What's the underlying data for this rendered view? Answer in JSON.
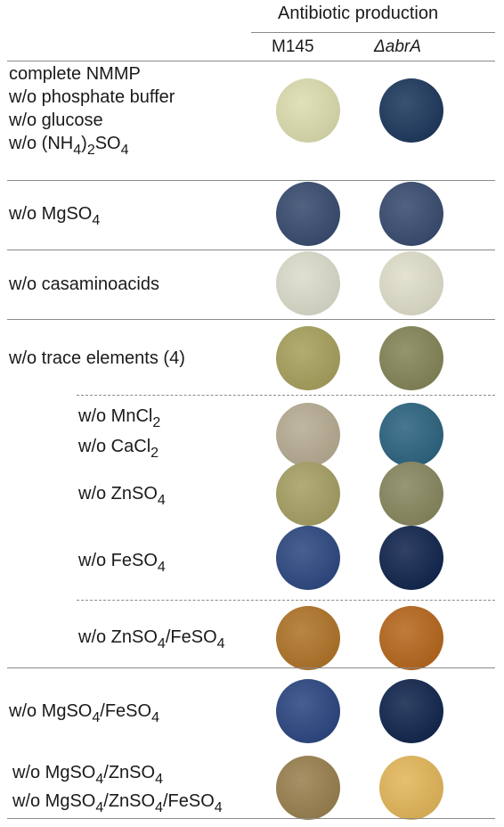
{
  "header": {
    "title": "Antibiotic production",
    "columns": [
      {
        "name": "M145",
        "style": "normal"
      },
      {
        "name": "ΔabrA",
        "style": "italic"
      }
    ]
  },
  "rows": [
    {
      "id": "row-complete",
      "labels": [
        [
          {
            "t": "complete NMMP"
          }
        ],
        [
          {
            "t": "w/o phosphate buffer"
          }
        ],
        [
          {
            "t": "w/o glucose"
          }
        ],
        [
          {
            "t": "w/o (NH"
          },
          {
            "sub": "4"
          },
          {
            "t": ")"
          },
          {
            "sub": "2"
          },
          {
            "t": "SO"
          },
          {
            "sub": "4"
          }
        ]
      ],
      "m145_color": "#ddddb0",
      "abra_color": "#1f3a5e"
    },
    {
      "id": "row-mgso4",
      "labels": [
        [
          {
            "t": "w/o MgSO"
          },
          {
            "sub": "4"
          }
        ]
      ],
      "m145_color": "#3a4d70",
      "abra_color": "#3a4d70"
    },
    {
      "id": "row-casamino",
      "labels": [
        [
          {
            "t": "w/o casaminoacids"
          }
        ]
      ],
      "m145_color": "#dcdccc",
      "abra_color": "#e0dfcb"
    },
    {
      "id": "row-trace",
      "labels": [
        [
          {
            "t": "w/o trace elements (4)"
          }
        ]
      ],
      "m145_color": "#a8a15e",
      "abra_color": "#858659"
    },
    {
      "id": "row-mncl2-cacl2",
      "labels": [
        [
          {
            "t": "w/o MnCl"
          },
          {
            "sub": "2"
          }
        ],
        [
          {
            "t": "w/o CaCl"
          },
          {
            "sub": "2"
          }
        ]
      ],
      "m145_color": "#b8ad94",
      "abra_color": "#2e6581"
    },
    {
      "id": "row-znso4",
      "labels": [
        [
          {
            "t": "w/o ZnSO"
          },
          {
            "sub": "4"
          }
        ]
      ],
      "m145_color": "#a7a065",
      "abra_color": "#888860"
    },
    {
      "id": "row-feso4",
      "labels": [
        [
          {
            "t": "w/o FeSO"
          },
          {
            "sub": "4"
          }
        ]
      ],
      "m145_color": "#2f4a82",
      "abra_color": "#13274f"
    },
    {
      "id": "row-znso4-feso4",
      "labels": [
        [
          {
            "t": "w/o ZnSO"
          },
          {
            "sub": "4"
          },
          {
            "t": "/FeSO"
          },
          {
            "sub": "4"
          }
        ]
      ],
      "m145_color": "#b0752a",
      "abra_color": "#b7681f"
    },
    {
      "id": "row-mgso4-feso4",
      "labels": [
        [
          {
            "t": "w/o MgSO"
          },
          {
            "sub": "4"
          },
          {
            "t": "/FeSO"
          },
          {
            "sub": "4"
          }
        ]
      ],
      "m145_color": "#2d4882",
      "abra_color": "#13284f"
    },
    {
      "id": "row-mgso4-znso4",
      "labels": [
        [
          {
            "t": "w/o MgSO"
          },
          {
            "sub": "4"
          },
          {
            "t": "/ZnSO"
          },
          {
            "sub": "4"
          }
        ],
        [
          {
            "t": "w/o MgSO"
          },
          {
            "sub": "4"
          },
          {
            "t": "/ZnSO"
          },
          {
            "sub": "4"
          },
          {
            "t": "/FeSO"
          },
          {
            "sub": "4"
          }
        ]
      ],
      "m145_color": "#9a8150",
      "abra_color": "#e3b75b"
    }
  ]
}
